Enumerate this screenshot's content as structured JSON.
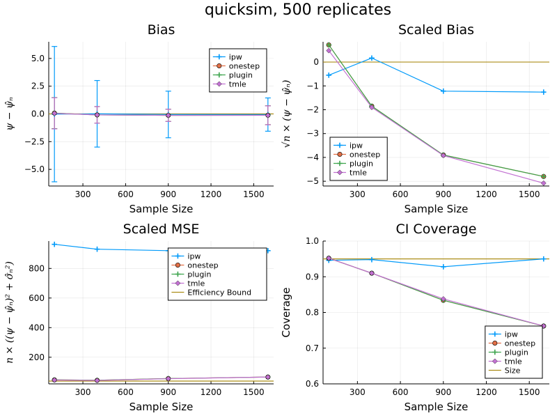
{
  "suptitle": "quicksim, 500 replicates",
  "colors": {
    "ipw": "#009AFA",
    "onestep": "#E26F46",
    "plugin": "#3DA44D",
    "tmle": "#C271D2",
    "ref": "#AC8D18"
  },
  "chart_data": [
    {
      "id": "bias",
      "type": "line",
      "title": "Bias",
      "xlabel": "Sample Size",
      "ylabel": "ψ − ψ̂ₙ",
      "xlim": [
        60,
        1640
      ],
      "ylim": [
        -6.5,
        6.5
      ],
      "xticks": [
        300,
        600,
        900,
        1200,
        1500
      ],
      "yticks": [
        -5.0,
        -2.5,
        0.0,
        2.5,
        5.0
      ],
      "ytick_labels": [
        "−5.0",
        "−2.5",
        "0.0",
        "2.5",
        "5.0"
      ],
      "x": [
        100,
        400,
        900,
        1600
      ],
      "legend_position": "top-right",
      "reference_lines": [
        {
          "y": 0,
          "color_key": "ref"
        }
      ],
      "series": [
        {
          "name": "ipw",
          "key": "ipw",
          "marker": "cross",
          "values": [
            -0.02,
            0.01,
            -0.05,
            -0.06
          ],
          "errors": [
            6.1,
            3.0,
            2.1,
            1.5
          ]
        },
        {
          "name": "onestep",
          "key": "onestep",
          "marker": "circle",
          "values": [
            0.07,
            -0.09,
            -0.13,
            -0.12
          ],
          "errors": [
            1.4,
            0.75,
            0.55,
            0.85
          ]
        },
        {
          "name": "plugin",
          "key": "plugin",
          "marker": "cross",
          "values": [
            0.07,
            -0.09,
            -0.13,
            -0.12
          ],
          "errors": [
            1.4,
            0.75,
            0.55,
            0.85
          ]
        },
        {
          "name": "tmle",
          "key": "tmle",
          "marker": "diamond",
          "values": [
            0.05,
            -0.09,
            -0.13,
            -0.13
          ],
          "errors": [
            1.4,
            0.75,
            0.55,
            0.85
          ]
        }
      ]
    },
    {
      "id": "scaled-bias",
      "type": "line",
      "title": "Scaled Bias",
      "xlabel": "Sample Size",
      "ylabel": "√n × (ψ − ψ̂ₙ)",
      "xlim": [
        60,
        1640
      ],
      "ylim": [
        -5.2,
        0.85
      ],
      "xticks": [
        300,
        600,
        900,
        1200,
        1500
      ],
      "yticks": [
        -5,
        -4,
        -3,
        -2,
        -1,
        0
      ],
      "ytick_labels": [
        "−5",
        "−4",
        "−3",
        "−2",
        "−1",
        "0"
      ],
      "x": [
        100,
        400,
        900,
        1600
      ],
      "legend_position": "bottom-left",
      "reference_lines": [
        {
          "y": 0,
          "color_key": "ref"
        }
      ],
      "series": [
        {
          "name": "ipw",
          "key": "ipw",
          "marker": "cross",
          "values": [
            -0.55,
            0.17,
            -1.22,
            -1.26
          ]
        },
        {
          "name": "onestep",
          "key": "onestep",
          "marker": "circle",
          "values": [
            0.72,
            -1.85,
            -3.9,
            -4.8
          ]
        },
        {
          "name": "plugin",
          "key": "plugin",
          "marker": "cross",
          "values": [
            0.72,
            -1.85,
            -3.9,
            -4.8
          ]
        },
        {
          "name": "tmle",
          "key": "tmle",
          "marker": "diamond",
          "values": [
            0.48,
            -1.9,
            -3.92,
            -5.08
          ]
        }
      ]
    },
    {
      "id": "scaled-mse",
      "type": "line",
      "title": "Scaled MSE",
      "xlabel": "Sample Size",
      "ylabel": "n × ((ψ − ψ̂ₙ)² + σ̂ₙ²)",
      "xlim": [
        60,
        1640
      ],
      "ylim": [
        20,
        985
      ],
      "xticks": [
        300,
        600,
        900,
        1200,
        1500
      ],
      "yticks": [
        200,
        400,
        600,
        800
      ],
      "ytick_labels": [
        "200",
        "400",
        "600",
        "800"
      ],
      "x": [
        100,
        400,
        900,
        1600
      ],
      "legend_position": "top-right",
      "reference_lines": [
        {
          "y": 39,
          "color_key": "ref",
          "name": "Efficiency Bound"
        }
      ],
      "series": [
        {
          "name": "ipw",
          "key": "ipw",
          "marker": "cross",
          "values": [
            963,
            930,
            920,
            920
          ]
        },
        {
          "name": "onestep",
          "key": "onestep",
          "marker": "circle",
          "values": [
            47,
            44,
            56,
            66
          ]
        },
        {
          "name": "plugin",
          "key": "plugin",
          "marker": "cross",
          "values": [
            47,
            44,
            56,
            66
          ]
        },
        {
          "name": "tmle",
          "key": "tmle",
          "marker": "diamond",
          "values": [
            46,
            43,
            55,
            66
          ]
        }
      ]
    },
    {
      "id": "ci-coverage",
      "type": "line",
      "title": "CI Coverage",
      "xlabel": "Sample Size",
      "ylabel": "Coverage",
      "xlim": [
        60,
        1640
      ],
      "ylim": [
        0.6,
        1.0
      ],
      "xticks": [
        300,
        600,
        900,
        1200,
        1500
      ],
      "yticks": [
        0.6,
        0.7,
        0.8,
        0.9,
        1.0
      ],
      "ytick_labels": [
        "0.6",
        "0.7",
        "0.8",
        "0.9",
        "1.0"
      ],
      "x": [
        100,
        400,
        900,
        1600
      ],
      "legend_position": "bottom-right",
      "reference_lines": [
        {
          "y": 0.95,
          "color_key": "ref",
          "name": "Size"
        }
      ],
      "series": [
        {
          "name": "ipw",
          "key": "ipw",
          "marker": "cross",
          "values": [
            0.946,
            0.948,
            0.928,
            0.95
          ]
        },
        {
          "name": "onestep",
          "key": "onestep",
          "marker": "circle",
          "values": [
            0.952,
            0.91,
            0.834,
            0.762
          ]
        },
        {
          "name": "plugin",
          "key": "plugin",
          "marker": "cross",
          "values": [
            0.952,
            0.91,
            0.834,
            0.762
          ]
        },
        {
          "name": "tmle",
          "key": "tmle",
          "marker": "diamond",
          "values": [
            0.952,
            0.91,
            0.838,
            0.762
          ]
        }
      ]
    }
  ]
}
